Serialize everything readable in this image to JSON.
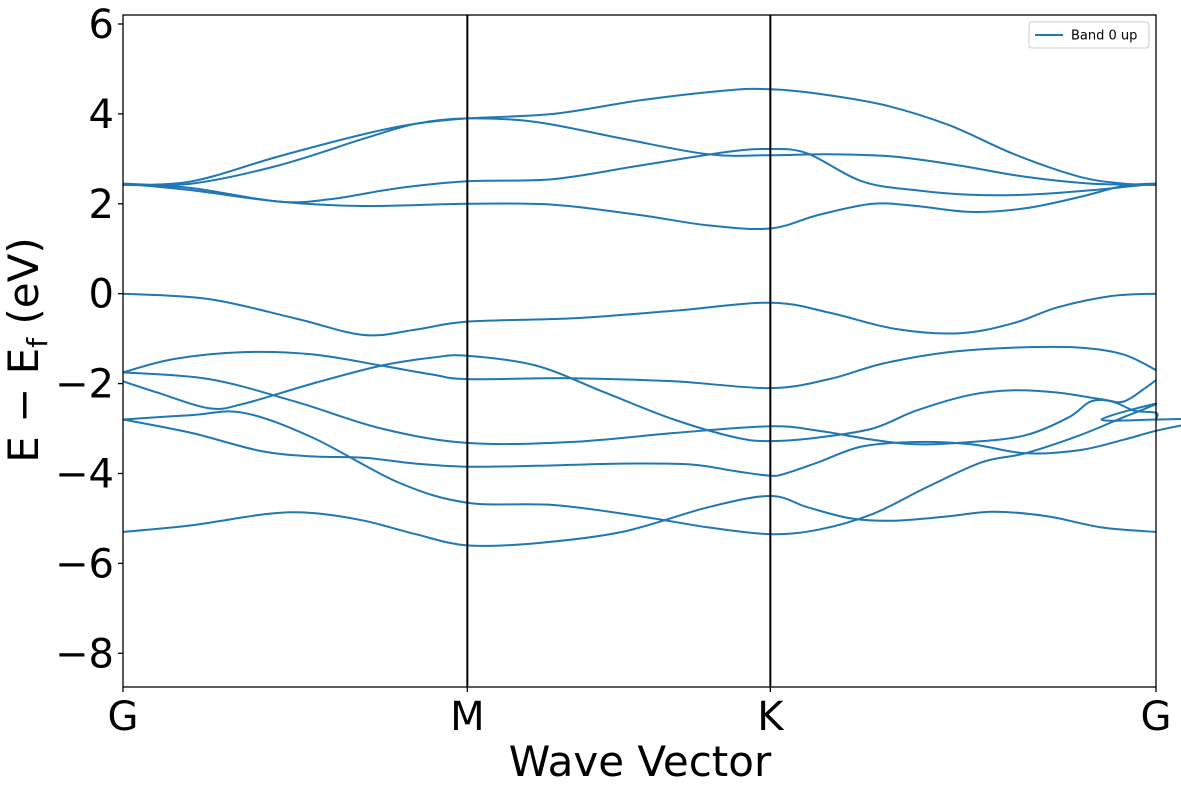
{
  "chart_data": {
    "type": "line",
    "xlabel": "Wave Vector",
    "ylabel": "E − E",
    "ylabel_sub": "f",
    "ylabel_unit": " (eV)",
    "xlim": [
      0,
      3
    ],
    "ylim": [
      -8.75,
      6.2
    ],
    "x_ticks": [
      {
        "x": 0,
        "label": "G"
      },
      {
        "x": 1,
        "label": "M"
      },
      {
        "x": 1.88,
        "label": "K"
      },
      {
        "x": 3,
        "label": "G"
      }
    ],
    "y_ticks": [
      {
        "y": 6,
        "label": "6"
      },
      {
        "y": 4,
        "label": "4"
      },
      {
        "y": 2,
        "label": "2"
      },
      {
        "y": 0,
        "label": "0"
      },
      {
        "y": -2,
        "label": "−2"
      },
      {
        "y": -4,
        "label": "−4"
      },
      {
        "y": -6,
        "label": "−6"
      },
      {
        "y": -8,
        "label": "−8"
      }
    ],
    "vlines": [
      1,
      1.88
    ],
    "line_color": "#1f77b4",
    "legend": {
      "label": "Band 0 up",
      "position": "top-right"
    },
    "bands": [
      [
        [
          0,
          -5.3
        ],
        [
          0.2,
          -5.15
        ],
        [
          0.42,
          -4.9
        ],
        [
          0.55,
          -4.88
        ],
        [
          0.7,
          -5.05
        ],
        [
          0.85,
          -5.35
        ],
        [
          1,
          -5.6
        ],
        [
          1.2,
          -5.55
        ],
        [
          1.45,
          -5.3
        ],
        [
          1.7,
          -4.75
        ],
        [
          1.88,
          -4.5
        ],
        [
          2.05,
          -4.75
        ],
        [
          2.25,
          -5.0
        ],
        [
          2.45,
          -5.05
        ],
        [
          2.7,
          -4.95
        ],
        [
          2.9,
          -4.85
        ],
        [
          3.15,
          -4.95
        ],
        [
          3.4,
          -5.2
        ],
        [
          3.65,
          -5.3
        ]
      ],
      [
        [
          0,
          -2.8
        ],
        [
          0.2,
          -3.1
        ],
        [
          0.4,
          -3.5
        ],
        [
          0.55,
          -3.62
        ],
        [
          0.7,
          -3.65
        ],
        [
          0.85,
          -3.78
        ],
        [
          1,
          -3.85
        ],
        [
          1.2,
          -3.83
        ],
        [
          1.45,
          -3.78
        ],
        [
          1.65,
          -3.8
        ],
        [
          1.78,
          -3.95
        ],
        [
          1.88,
          -4.05
        ],
        [
          1.95,
          -4.0
        ],
        [
          2.1,
          -3.75
        ],
        [
          2.3,
          -3.4
        ],
        [
          2.55,
          -3.3
        ],
        [
          2.8,
          -3.35
        ],
        [
          3.05,
          -3.55
        ],
        [
          3.3,
          -3.48
        ],
        [
          3.5,
          -3.25
        ],
        [
          3.65,
          -3.05
        ],
        [
          3.8,
          -2.9
        ],
        [
          3.95,
          -2.78
        ],
        [
          3.65,
          -2.8
        ]
      ],
      [
        [
          0,
          -2.8
        ],
        [
          0.2,
          -2.7
        ],
        [
          0.35,
          -2.65
        ],
        [
          0.55,
          -3.2
        ],
        [
          0.8,
          -4.2
        ],
        [
          1,
          -4.65
        ],
        [
          1.25,
          -4.7
        ],
        [
          1.5,
          -4.95
        ],
        [
          1.7,
          -5.2
        ],
        [
          1.88,
          -5.35
        ],
        [
          2.1,
          -5.25
        ],
        [
          2.35,
          -4.9
        ],
        [
          2.6,
          -4.3
        ],
        [
          2.85,
          -3.75
        ],
        [
          3.05,
          -3.55
        ],
        [
          3.3,
          -3.15
        ],
        [
          3.5,
          -2.75
        ],
        [
          3.65,
          -2.45
        ],
        [
          3.4,
          -2.8
        ],
        [
          3.65,
          -2.8
        ]
      ],
      [
        [
          0,
          -1.75
        ],
        [
          0.25,
          -1.9
        ],
        [
          0.5,
          -2.4
        ],
        [
          0.75,
          -3.0
        ],
        [
          1,
          -3.32
        ],
        [
          1.3,
          -3.3
        ],
        [
          1.6,
          -3.1
        ],
        [
          1.88,
          -2.95
        ],
        [
          2.1,
          -3.05
        ],
        [
          2.35,
          -3.25
        ],
        [
          2.55,
          -3.35
        ],
        [
          2.8,
          -3.3
        ],
        [
          3.05,
          -3.15
        ],
        [
          3.25,
          -2.75
        ],
        [
          3.35,
          -2.4
        ],
        [
          3.45,
          -2.4
        ],
        [
          3.55,
          -2.6
        ],
        [
          3.65,
          -2.65
        ],
        [
          3.65,
          -2.8
        ]
      ],
      [
        [
          0,
          -1.95
        ],
        [
          0.1,
          -2.2
        ],
        [
          0.25,
          -2.55
        ],
        [
          0.35,
          -2.45
        ],
        [
          0.55,
          -2.0
        ],
        [
          0.75,
          -1.6
        ],
        [
          0.9,
          -1.42
        ],
        [
          1,
          -1.38
        ],
        [
          1.2,
          -1.6
        ],
        [
          1.4,
          -2.2
        ],
        [
          1.6,
          -2.8
        ],
        [
          1.78,
          -3.2
        ],
        [
          1.88,
          -3.28
        ],
        [
          2.1,
          -3.2
        ],
        [
          2.35,
          -3.0
        ],
        [
          2.55,
          -2.6
        ],
        [
          2.8,
          -2.25
        ],
        [
          3.0,
          -2.15
        ],
        [
          3.2,
          -2.2
        ],
        [
          3.4,
          -2.35
        ],
        [
          3.5,
          -2.4
        ],
        [
          3.6,
          -2.1
        ],
        [
          3.65,
          -1.92
        ]
      ],
      [
        [
          0,
          -1.75
        ],
        [
          0.15,
          -1.45
        ],
        [
          0.35,
          -1.3
        ],
        [
          0.55,
          -1.35
        ],
        [
          0.75,
          -1.6
        ],
        [
          0.9,
          -1.8
        ],
        [
          1,
          -1.9
        ],
        [
          1.3,
          -1.88
        ],
        [
          1.6,
          -1.95
        ],
        [
          1.88,
          -2.1
        ],
        [
          2.15,
          -1.9
        ],
        [
          2.4,
          -1.55
        ],
        [
          2.7,
          -1.3
        ],
        [
          3.0,
          -1.2
        ],
        [
          3.3,
          -1.2
        ],
        [
          3.5,
          -1.35
        ],
        [
          3.65,
          -1.7
        ]
      ],
      [
        [
          0,
          0
        ],
        [
          0.25,
          -0.12
        ],
        [
          0.5,
          -0.55
        ],
        [
          0.7,
          -0.92
        ],
        [
          0.85,
          -0.8
        ],
        [
          1,
          -0.62
        ],
        [
          1.3,
          -0.55
        ],
        [
          1.6,
          -0.38
        ],
        [
          1.88,
          -0.2
        ],
        [
          2.15,
          -0.42
        ],
        [
          2.45,
          -0.78
        ],
        [
          2.75,
          -0.88
        ],
        [
          3.0,
          -0.65
        ],
        [
          3.2,
          -0.3
        ],
        [
          3.45,
          -0.05
        ],
        [
          3.65,
          0
        ]
      ],
      [
        [
          0,
          2.45
        ],
        [
          0.2,
          2.3
        ],
        [
          0.45,
          2.05
        ],
        [
          0.7,
          1.95
        ],
        [
          1,
          2.0
        ],
        [
          1.25,
          1.98
        ],
        [
          1.5,
          1.75
        ],
        [
          1.7,
          1.52
        ],
        [
          1.88,
          1.45
        ],
        [
          2.1,
          1.75
        ],
        [
          2.35,
          2.0
        ],
        [
          2.55,
          1.95
        ],
        [
          2.8,
          1.82
        ],
        [
          3.05,
          1.9
        ],
        [
          3.3,
          2.15
        ],
        [
          3.5,
          2.4
        ],
        [
          3.65,
          2.45
        ]
      ],
      [
        [
          0,
          2.45
        ],
        [
          0.2,
          2.35
        ],
        [
          0.45,
          2.05
        ],
        [
          0.6,
          2.1
        ],
        [
          0.8,
          2.35
        ],
        [
          1,
          2.5
        ],
        [
          1.25,
          2.55
        ],
        [
          1.5,
          2.85
        ],
        [
          1.75,
          3.15
        ],
        [
          1.88,
          3.22
        ],
        [
          2.05,
          3.12
        ],
        [
          2.3,
          2.5
        ],
        [
          2.55,
          2.3
        ],
        [
          2.8,
          2.2
        ],
        [
          3.05,
          2.2
        ],
        [
          3.35,
          2.3
        ],
        [
          3.65,
          2.45
        ]
      ],
      [
        [
          0,
          2.42
        ],
        [
          0.2,
          2.45
        ],
        [
          0.45,
          2.85
        ],
        [
          0.7,
          3.45
        ],
        [
          0.85,
          3.78
        ],
        [
          1,
          3.9
        ],
        [
          1.2,
          3.82
        ],
        [
          1.45,
          3.45
        ],
        [
          1.7,
          3.1
        ],
        [
          1.88,
          3.08
        ],
        [
          2.15,
          3.1
        ],
        [
          2.45,
          3.05
        ],
        [
          2.75,
          2.85
        ],
        [
          3.05,
          2.6
        ],
        [
          3.35,
          2.45
        ],
        [
          3.65,
          2.42
        ]
      ],
      [
        [
          0,
          2.42
        ],
        [
          0.2,
          2.5
        ],
        [
          0.45,
          3.05
        ],
        [
          0.7,
          3.55
        ],
        [
          0.85,
          3.78
        ],
        [
          1,
          3.9
        ],
        [
          1.25,
          4.0
        ],
        [
          1.5,
          4.3
        ],
        [
          1.75,
          4.52
        ],
        [
          1.88,
          4.55
        ],
        [
          2.1,
          4.45
        ],
        [
          2.4,
          4.2
        ],
        [
          2.7,
          3.75
        ],
        [
          3.0,
          3.1
        ],
        [
          3.3,
          2.6
        ],
        [
          3.5,
          2.45
        ],
        [
          3.65,
          2.42
        ]
      ]
    ]
  }
}
